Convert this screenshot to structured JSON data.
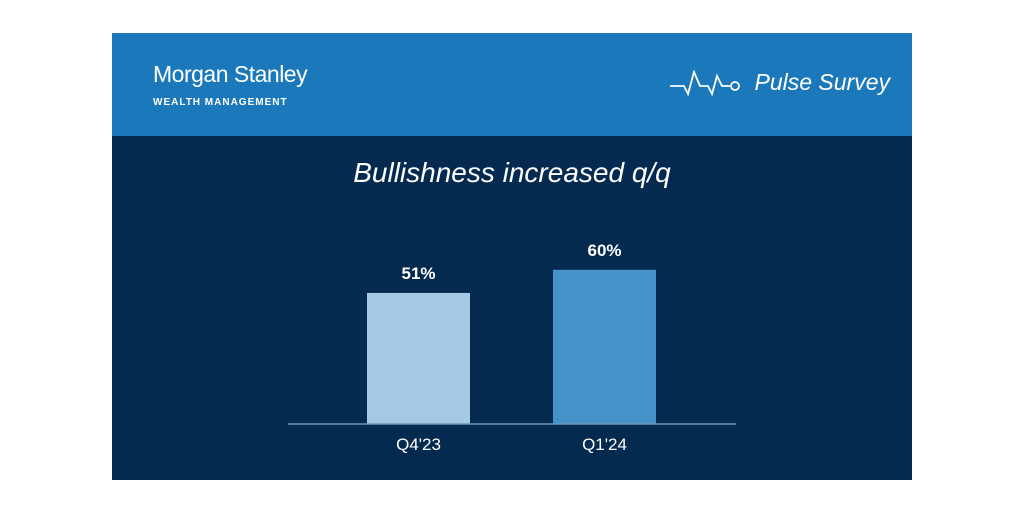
{
  "header": {
    "brand": "Morgan Stanley",
    "division": "WEALTH MANAGEMENT",
    "survey": "Pulse Survey",
    "survey_icon": "pulse-line-icon"
  },
  "colors": {
    "header": "#1b79bb",
    "background": "#052a4f",
    "bar1": "#a5c9e5",
    "bar2": "#4593c8",
    "axis": "#6f95bd"
  },
  "chart_data": {
    "type": "bar",
    "title": "Bullishness increased q/q",
    "categories": [
      "Q4'23",
      "Q1'24"
    ],
    "values": [
      51,
      60
    ],
    "data_labels": [
      "51%",
      "60%"
    ],
    "xlabel": "",
    "ylabel": "",
    "ylim": [
      0,
      100
    ],
    "grid": false,
    "legend": "none"
  }
}
